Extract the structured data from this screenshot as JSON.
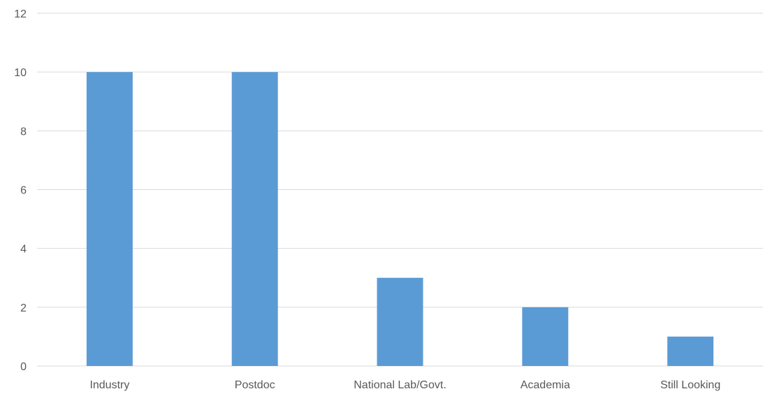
{
  "chart_data": {
    "type": "bar",
    "categories": [
      "Industry",
      "Postdoc",
      "National Lab/Govt.",
      "Academia",
      "Still Looking"
    ],
    "values": [
      10,
      10,
      3,
      2,
      1
    ],
    "y_ticks": [
      "0",
      "2",
      "4",
      "6",
      "8",
      "10",
      "12"
    ],
    "ylim": [
      0,
      12
    ],
    "grid": true,
    "legend": "none",
    "title": "",
    "xlabel": "",
    "ylabel": "",
    "colors": {
      "bar": "#5b9bd5",
      "grid": "#d9d9d9",
      "axis_text": "#595959"
    }
  }
}
